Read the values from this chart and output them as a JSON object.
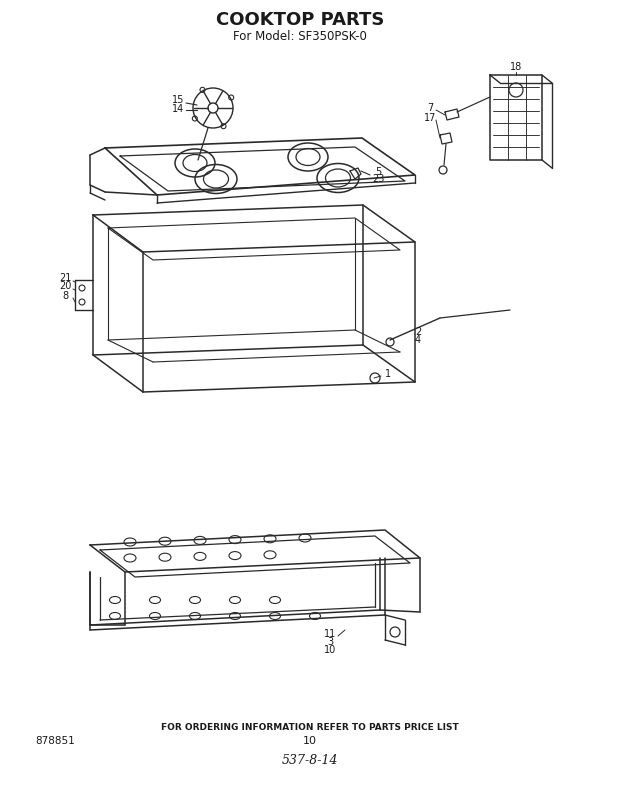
{
  "title": "COOKTOP PARTS",
  "subtitle": "For Model: SF350PSK-0",
  "footer_text": "FOR ORDERING INFORMATION REFER TO PARTS PRICE LIST",
  "footer_num": "10",
  "footer_code": "537-8-14",
  "part_num": "878851",
  "bg_color": "#ffffff",
  "line_color": "#2a2a2a",
  "label_color": "#1a1a1a",
  "lw_main": 1.1,
  "lw_thin": 0.7
}
